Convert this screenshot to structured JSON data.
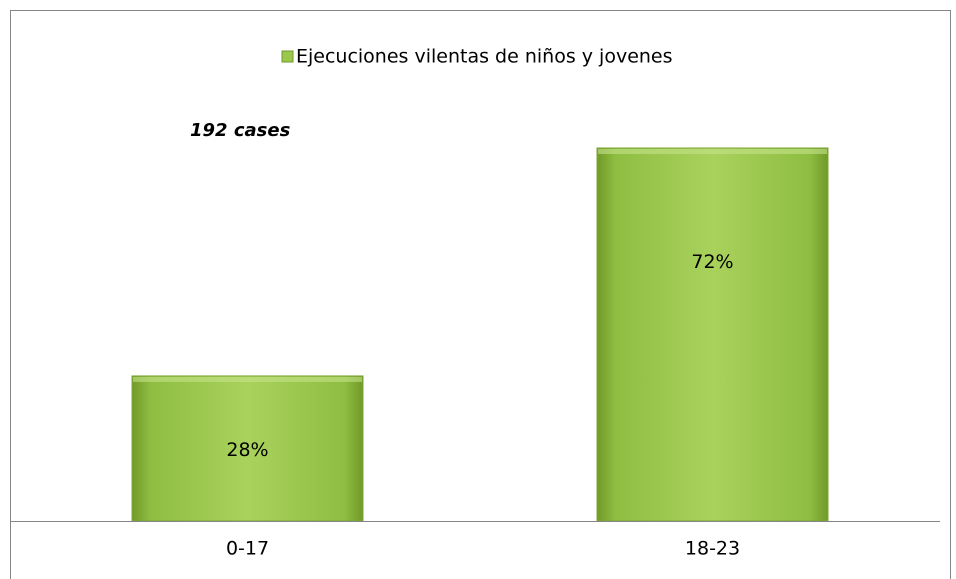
{
  "chart_data": {
    "type": "bar",
    "categories": [
      "0-17",
      "18-23"
    ],
    "series": [
      {
        "name": "Ejecuciones vilentas de niños y jovenes",
        "color": "#9bc74c",
        "values": [
          28,
          72
        ],
        "value_labels": [
          "28%",
          "72%"
        ]
      }
    ],
    "annotations": [
      "192 cases"
    ]
  }
}
